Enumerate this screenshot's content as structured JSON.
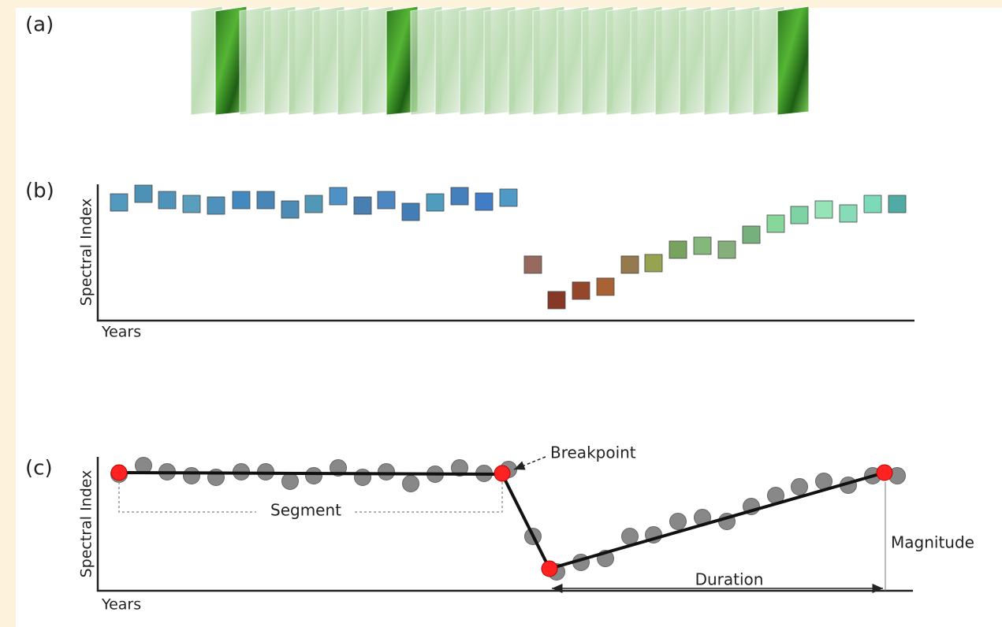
{
  "panels": {
    "a": {
      "label": "(a)"
    },
    "b": {
      "label": "(b)",
      "y_axis_label": "Spectral Index",
      "x_axis_label": "Years"
    },
    "c": {
      "label": "(c)",
      "y_axis_label": "Spectral Index",
      "x_axis_label": "Years",
      "annotations": {
        "breakpoint": "Breakpoint",
        "segment": "Segment",
        "magnitude": "Magnitude",
        "duration": "Duration"
      }
    }
  }
}
